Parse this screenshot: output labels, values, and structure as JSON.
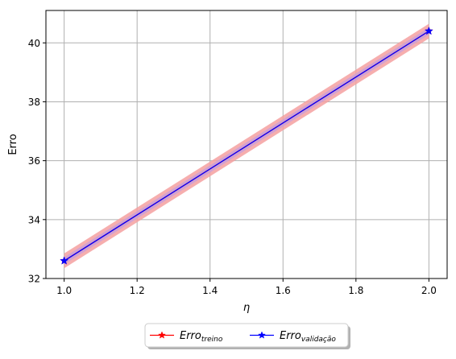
{
  "chart_data": {
    "type": "line",
    "title": "",
    "xlabel": "η",
    "ylabel": "Erro",
    "xlim": [
      0.95,
      2.05
    ],
    "ylim": [
      32,
      41.1
    ],
    "x_ticks": [
      1.0,
      1.2,
      1.4,
      1.6,
      1.8,
      2.0
    ],
    "x_tick_labels": [
      "1.0",
      "1.2",
      "1.4",
      "1.6",
      "1.8",
      "2.0"
    ],
    "y_ticks": [
      32,
      34,
      36,
      38,
      40
    ],
    "y_tick_labels": [
      "32",
      "34",
      "36",
      "38",
      "40"
    ],
    "grid": true,
    "legend_position": "bottom-center-outside",
    "series": [
      {
        "name": "treino",
        "legend_base": "Erro",
        "legend_sub": "treino",
        "color": "#ff0000",
        "band_color": "#f4a0a0",
        "marker": "star",
        "x": [
          1.0,
          2.0
        ],
        "y": [
          32.6,
          40.4
        ],
        "band_half_width": 0.25
      },
      {
        "name": "validação",
        "legend_base": "Erro",
        "legend_sub": "validação",
        "color": "#0000ff",
        "band_color": "#c9a0d8",
        "marker": "star",
        "x": [
          1.0,
          2.0
        ],
        "y": [
          32.6,
          40.4
        ],
        "band_half_width": 0.12
      }
    ]
  }
}
